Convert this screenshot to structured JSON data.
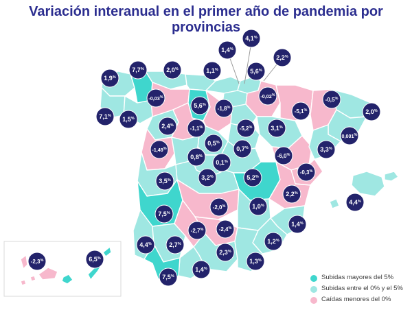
{
  "title": "Variación interanual en el primer año de pandemia por provincias",
  "colors": {
    "high": "#3fd6cd",
    "mid": "#9fe7e2",
    "low": "#f7b8cc",
    "bubble": "#23236b",
    "bubble_text": "#ffffff",
    "title": "#2b2d8f",
    "border": "#ffffff"
  },
  "legend": [
    {
      "label": "Subidas mayores del 5%",
      "category": "high"
    },
    {
      "label": "Subidas entre el 0% y el 5%",
      "category": "mid"
    },
    {
      "label": "Caídas menores del 0%",
      "category": "low"
    }
  ],
  "markers": [
    {
      "value": "4,1",
      "sup": "%"
    },
    {
      "value": "1,4",
      "sup": "%"
    },
    {
      "value": "2,2",
      "sup": "%"
    },
    {
      "value": "1,9",
      "sup": "%"
    },
    {
      "value": "7,7",
      "sup": "%"
    },
    {
      "value": "2,0",
      "sup": "%"
    },
    {
      "value": "1,1",
      "sup": "%"
    },
    {
      "value": "5,6",
      "sup": "%"
    },
    {
      "value": "-0,03",
      "sup": "%"
    },
    {
      "value": "-0,02",
      "sup": "%"
    },
    {
      "value": "-0,5",
      "sup": "%"
    },
    {
      "value": "5,6",
      "sup": "%"
    },
    {
      "value": "-1,8",
      "sup": "%"
    },
    {
      "value": "-5,1",
      "sup": "%"
    },
    {
      "value": "7,1",
      "sup": "%"
    },
    {
      "value": "1,5",
      "sup": "%"
    },
    {
      "value": "2,0",
      "sup": "%"
    },
    {
      "value": "2,4",
      "sup": "%"
    },
    {
      "value": "-1,1",
      "sup": "%"
    },
    {
      "value": "-5,2",
      "sup": "%"
    },
    {
      "value": "3,1",
      "sup": "%"
    },
    {
      "value": "0,001",
      "sup": "%"
    },
    {
      "value": "-1,49",
      "sup": "%"
    },
    {
      "value": "0,5",
      "sup": "%"
    },
    {
      "value": "0,7",
      "sup": "%"
    },
    {
      "value": "3,3",
      "sup": "%"
    },
    {
      "value": "0,8",
      "sup": "%"
    },
    {
      "value": "0,1",
      "sup": "%"
    },
    {
      "value": "-6,0",
      "sup": "%"
    },
    {
      "value": "-0,3",
      "sup": "%"
    },
    {
      "value": "3,5",
      "sup": "%"
    },
    {
      "value": "3,2",
      "sup": "%"
    },
    {
      "value": "5,2",
      "sup": "%"
    },
    {
      "value": "2,2",
      "sup": "%"
    },
    {
      "value": "4,4",
      "sup": "%"
    },
    {
      "value": "7,5",
      "sup": "%"
    },
    {
      "value": "-2,0",
      "sup": "%"
    },
    {
      "value": "1,0",
      "sup": "%"
    },
    {
      "value": "1,4",
      "sup": "%"
    },
    {
      "value": "-2,7",
      "sup": "%"
    },
    {
      "value": "-2,4",
      "sup": "%"
    },
    {
      "value": "-2,3",
      "sup": "%"
    },
    {
      "value": "6,5",
      "sup": "%"
    },
    {
      "value": "4,4",
      "sup": "%"
    },
    {
      "value": "2,7",
      "sup": "%"
    },
    {
      "value": "1,2",
      "sup": "%"
    },
    {
      "value": "2,3",
      "sup": "%"
    },
    {
      "value": "1,3",
      "sup": "%"
    },
    {
      "value": "7,5",
      "sup": "%"
    },
    {
      "value": "1,4",
      "sup": "%"
    }
  ]
}
